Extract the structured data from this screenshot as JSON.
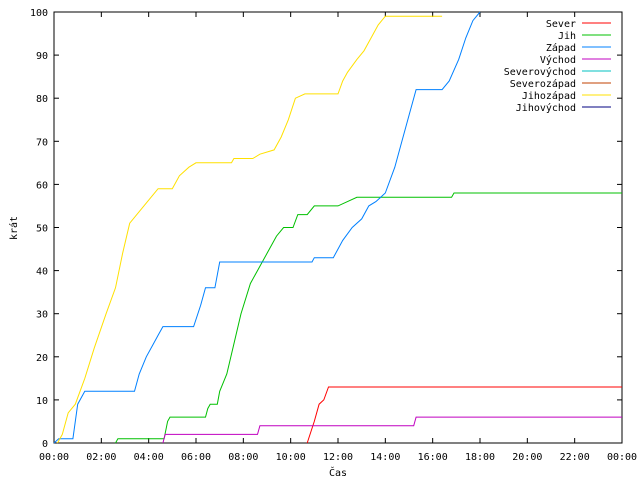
{
  "chart_data": {
    "type": "line",
    "title": "",
    "xlabel": "Čas",
    "ylabel": "krát",
    "x_unit": "hours",
    "xlim": [
      0,
      24
    ],
    "ylim": [
      0,
      100
    ],
    "x_ticks": [
      {
        "value": 0,
        "label": "00:00"
      },
      {
        "value": 2,
        "label": "02:00"
      },
      {
        "value": 4,
        "label": "04:00"
      },
      {
        "value": 6,
        "label": "06:00"
      },
      {
        "value": 8,
        "label": "08:00"
      },
      {
        "value": 10,
        "label": "10:00"
      },
      {
        "value": 12,
        "label": "12:00"
      },
      {
        "value": 14,
        "label": "14:00"
      },
      {
        "value": 16,
        "label": "16:00"
      },
      {
        "value": 18,
        "label": "18:00"
      },
      {
        "value": 20,
        "label": "20:00"
      },
      {
        "value": 22,
        "label": "22:00"
      },
      {
        "value": 24,
        "label": "00:00"
      }
    ],
    "y_ticks": [
      {
        "value": 0,
        "label": "0"
      },
      {
        "value": 10,
        "label": "10"
      },
      {
        "value": 20,
        "label": "20"
      },
      {
        "value": 30,
        "label": "30"
      },
      {
        "value": 40,
        "label": "40"
      },
      {
        "value": 50,
        "label": "50"
      },
      {
        "value": 60,
        "label": "60"
      },
      {
        "value": 70,
        "label": "70"
      },
      {
        "value": 80,
        "label": "80"
      },
      {
        "value": 90,
        "label": "90"
      },
      {
        "value": 100,
        "label": "100"
      }
    ],
    "grid": false,
    "legend_position": "top-right",
    "series": [
      {
        "name": "Sever",
        "color": "#ff0000",
        "points": [
          [
            10.7,
            0
          ],
          [
            11.0,
            5
          ],
          [
            11.2,
            9
          ],
          [
            11.4,
            10
          ],
          [
            11.6,
            13
          ],
          [
            24,
            13
          ]
        ]
      },
      {
        "name": "Jih",
        "color": "#00c000",
        "points": [
          [
            2.6,
            0
          ],
          [
            2.7,
            1
          ],
          [
            4.65,
            1
          ],
          [
            4.8,
            5
          ],
          [
            4.9,
            6
          ],
          [
            6.4,
            6
          ],
          [
            6.5,
            8
          ],
          [
            6.6,
            9
          ],
          [
            6.9,
            9
          ],
          [
            7.0,
            12
          ],
          [
            7.3,
            16
          ],
          [
            7.6,
            23
          ],
          [
            7.9,
            30
          ],
          [
            8.3,
            37
          ],
          [
            8.6,
            40
          ],
          [
            9.0,
            44
          ],
          [
            9.4,
            48
          ],
          [
            9.7,
            50
          ],
          [
            10.1,
            50
          ],
          [
            10.3,
            53
          ],
          [
            10.7,
            53
          ],
          [
            11.0,
            55
          ],
          [
            12.0,
            55
          ],
          [
            12.4,
            56
          ],
          [
            12.8,
            57
          ],
          [
            14.5,
            57
          ],
          [
            16.8,
            57
          ],
          [
            16.9,
            58
          ],
          [
            24,
            58
          ]
        ]
      },
      {
        "name": "Západ",
        "color": "#0080ff",
        "points": [
          [
            0,
            0
          ],
          [
            0.2,
            1
          ],
          [
            0.8,
            1
          ],
          [
            1.0,
            9
          ],
          [
            1.3,
            12
          ],
          [
            3.4,
            12
          ],
          [
            3.6,
            16
          ],
          [
            3.9,
            20
          ],
          [
            4.2,
            23
          ],
          [
            4.4,
            25
          ],
          [
            4.6,
            27
          ],
          [
            5.9,
            27
          ],
          [
            6.2,
            32
          ],
          [
            6.4,
            36
          ],
          [
            6.8,
            36
          ],
          [
            7.0,
            42
          ],
          [
            10.9,
            42
          ],
          [
            11.0,
            43
          ],
          [
            11.8,
            43
          ],
          [
            12.2,
            47
          ],
          [
            12.6,
            50
          ],
          [
            13.0,
            52
          ],
          [
            13.3,
            55
          ],
          [
            13.6,
            56
          ],
          [
            14.0,
            58
          ],
          [
            14.4,
            64
          ],
          [
            14.7,
            70
          ],
          [
            15.0,
            76
          ],
          [
            15.3,
            82
          ],
          [
            16.4,
            82
          ],
          [
            16.7,
            84
          ],
          [
            17.1,
            89
          ],
          [
            17.4,
            94
          ],
          [
            17.7,
            98
          ],
          [
            18.0,
            100
          ]
        ]
      },
      {
        "name": "Východ",
        "color": "#c000c0",
        "points": [
          [
            4.6,
            0
          ],
          [
            4.7,
            2
          ],
          [
            8.6,
            2
          ],
          [
            8.7,
            4
          ],
          [
            15.2,
            4
          ],
          [
            15.3,
            6
          ],
          [
            24,
            6
          ]
        ]
      },
      {
        "name": "Severovýchod",
        "color": "#00c0c0",
        "points": []
      },
      {
        "name": "Severozápad",
        "color": "#c04000",
        "points": []
      },
      {
        "name": "Jihozápad",
        "color": "#ffe000",
        "points": [
          [
            0.15,
            0
          ],
          [
            0.35,
            2
          ],
          [
            0.6,
            7
          ],
          [
            0.9,
            9
          ],
          [
            1.3,
            15
          ],
          [
            1.7,
            22
          ],
          [
            2.2,
            30
          ],
          [
            2.6,
            36
          ],
          [
            2.9,
            44
          ],
          [
            3.2,
            51
          ],
          [
            3.5,
            53
          ],
          [
            3.8,
            55
          ],
          [
            4.1,
            57
          ],
          [
            4.4,
            59
          ],
          [
            5.0,
            59
          ],
          [
            5.3,
            62
          ],
          [
            5.7,
            64
          ],
          [
            6.0,
            65
          ],
          [
            7.5,
            65
          ],
          [
            7.6,
            66
          ],
          [
            8.4,
            66
          ],
          [
            8.7,
            67
          ],
          [
            9.3,
            68
          ],
          [
            9.6,
            71
          ],
          [
            9.9,
            75
          ],
          [
            10.2,
            80
          ],
          [
            10.6,
            81
          ],
          [
            12.0,
            81
          ],
          [
            12.2,
            84
          ],
          [
            12.4,
            86
          ],
          [
            12.8,
            89
          ],
          [
            13.1,
            91
          ],
          [
            13.4,
            94
          ],
          [
            13.7,
            97
          ],
          [
            14.0,
            99
          ],
          [
            16.4,
            99
          ]
        ]
      },
      {
        "name": "Jihovýchod",
        "color": "#000080",
        "points": []
      }
    ]
  }
}
